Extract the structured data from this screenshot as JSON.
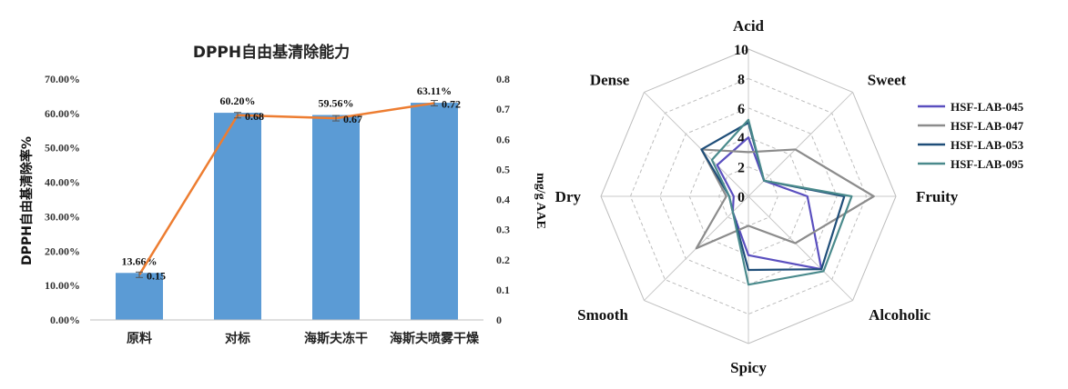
{
  "chart_data": [
    {
      "type": "bar",
      "title": "DPPH自由基清除能力",
      "ylabel": "DPPH自由基清除率%",
      "y2label": "mg/g AAE",
      "categories": [
        "原料",
        "对标",
        "海斯夫冻干",
        "海斯夫喷雾干燥"
      ],
      "ylim": [
        0,
        70
      ],
      "y_ticks": [
        "0.00%",
        "10.00%",
        "20.00%",
        "30.00%",
        "40.00%",
        "50.00%",
        "60.00%",
        "70.00%"
      ],
      "y2lim": [
        0,
        0.8
      ],
      "y2_ticks": [
        "0",
        "0.1",
        "0.2",
        "0.3",
        "0.4",
        "0.5",
        "0.6",
        "0.7",
        "0.8"
      ],
      "series": [
        {
          "kind": "bar",
          "axis": "left",
          "color": "#5b9bd5",
          "values": [
            13.66,
            60.2,
            59.56,
            63.11
          ],
          "labels": [
            "13.66%",
            "60.20%",
            "59.56%",
            "63.11%"
          ]
        },
        {
          "kind": "line",
          "axis": "right",
          "color": "#ed7d31",
          "values": [
            0.15,
            0.68,
            0.67,
            0.72
          ],
          "labels": [
            "0.15",
            "0.68",
            "0.67",
            "0.72"
          ]
        }
      ],
      "grid": false
    },
    {
      "type": "radar",
      "axes": [
        "Acid",
        "Sweet",
        "Fruity",
        "Alcoholic",
        "Spicy",
        "Smooth",
        "Dry",
        "Dense"
      ],
      "rlim": [
        0,
        10
      ],
      "r_ticks": [
        "0",
        "2",
        "4",
        "6",
        "8",
        "10"
      ],
      "legend_position": "right",
      "series": [
        {
          "name": "HSF-LAB-045",
          "color": "#5a4fbf",
          "values": [
            4,
            1.5,
            4,
            7,
            4,
            1.5,
            1,
            3
          ]
        },
        {
          "name": "HSF-LAB-047",
          "color": "#8c8c8c",
          "values": [
            3,
            4.5,
            8.5,
            4.5,
            2,
            5,
            1.5,
            4.5
          ]
        },
        {
          "name": "HSF-LAB-053",
          "color": "#1f4e79",
          "values": [
            5,
            1.5,
            6.5,
            7,
            5,
            1.5,
            1.3,
            4.5
          ]
        },
        {
          "name": "HSF-LAB-095",
          "color": "#4a8a8c",
          "values": [
            5.2,
            1.5,
            7,
            7.2,
            6,
            1.5,
            1.3,
            3.5
          ]
        }
      ]
    }
  ]
}
